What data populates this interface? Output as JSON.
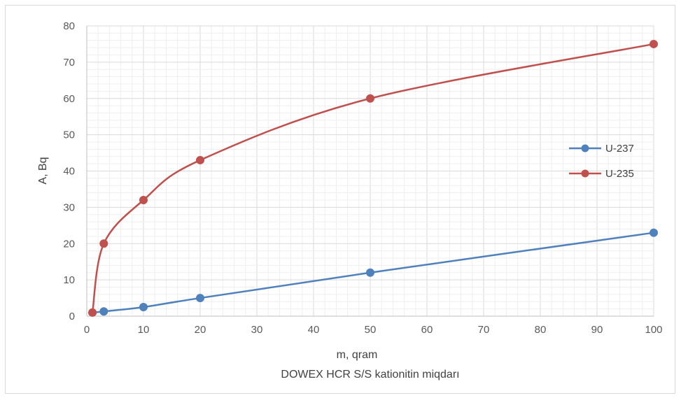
{
  "chart_data": {
    "type": "line",
    "xlabel": "m, qram",
    "xlabel2": "DOWEX HCR S/S kationitin miqdarı",
    "ylabel": "A, Bq",
    "xlim": [
      0,
      100
    ],
    "ylim": [
      0,
      80
    ],
    "x_ticks": [
      "0",
      "10",
      "20",
      "30",
      "40",
      "50",
      "60",
      "70",
      "80",
      "90",
      "100"
    ],
    "y_ticks": [
      "0",
      "10",
      "20",
      "30",
      "40",
      "50",
      "60",
      "70",
      "80"
    ],
    "grid": true,
    "legend_position": "right",
    "series": [
      {
        "name": "U-237",
        "color": "#4f81bd",
        "x": [
          1,
          3,
          10,
          20,
          50,
          100
        ],
        "y": [
          1,
          1.3,
          2.5,
          5,
          12,
          23
        ]
      },
      {
        "name": "U-235",
        "color": "#c0504d",
        "x": [
          1,
          3,
          10,
          20,
          50,
          100
        ],
        "y": [
          1,
          20,
          32,
          43,
          60,
          75
        ]
      }
    ]
  }
}
